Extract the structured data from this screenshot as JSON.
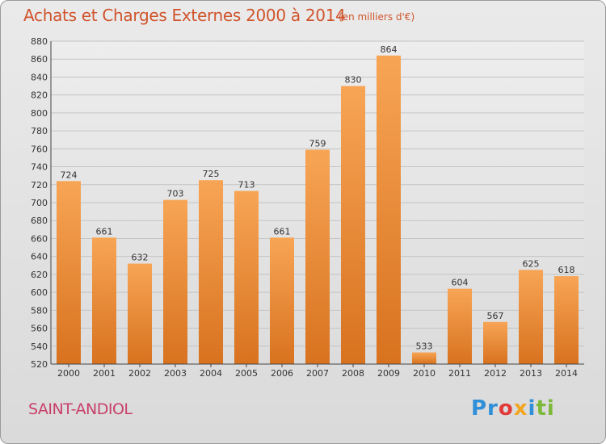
{
  "header": {
    "title": "Achats et Charges Externes 2000 à 2014",
    "unit": "(en milliers d'€)"
  },
  "footer": {
    "place": "SAINT-ANDIOL",
    "logo": [
      "Pr",
      "o",
      "x",
      "i",
      "ti"
    ]
  },
  "colors": {
    "bar_top": "#f7a555",
    "bar_bottom": "#d8721f",
    "title": "#d0542c",
    "place": "#c8406a"
  },
  "chart_data": {
    "type": "bar",
    "title": "Achats et Charges Externes 2000 à 2014",
    "categories": [
      "2000",
      "2001",
      "2002",
      "2003",
      "2004",
      "2005",
      "2006",
      "2007",
      "2008",
      "2009",
      "2010",
      "2011",
      "2012",
      "2013",
      "2014"
    ],
    "values": [
      724,
      661,
      632,
      703,
      725,
      713,
      661,
      759,
      830,
      864,
      533,
      604,
      567,
      625,
      618
    ],
    "ylim": [
      520,
      880
    ],
    "yticks": [
      520,
      540,
      560,
      580,
      600,
      620,
      640,
      660,
      680,
      700,
      720,
      740,
      760,
      780,
      800,
      820,
      840,
      860,
      880
    ],
    "grid": "horizontal",
    "legend": "none"
  }
}
